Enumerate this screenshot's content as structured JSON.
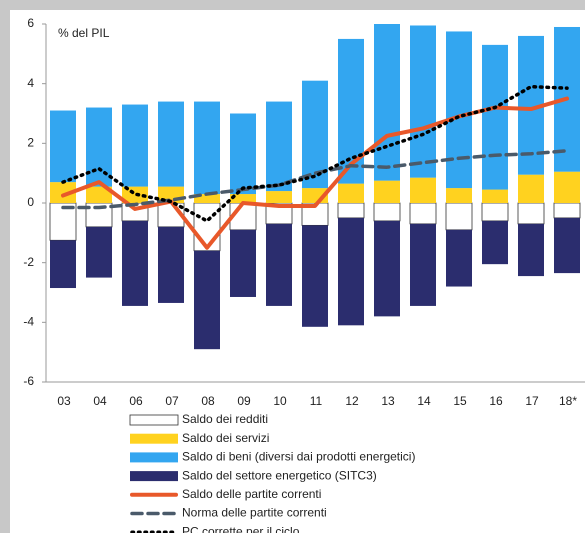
{
  "chart_data": {
    "type": "bar",
    "annotation": "% del PIL",
    "categories": [
      "03",
      "04",
      "06",
      "07",
      "08",
      "09",
      "10",
      "11",
      "12",
      "13",
      "14",
      "15",
      "16",
      "17",
      "18*"
    ],
    "ylim": [
      -6,
      6
    ],
    "yticks": [
      -6,
      -4,
      -2,
      0,
      2,
      4,
      6
    ],
    "grid": false,
    "stacked": true,
    "series": [
      {
        "name": "Saldo dei redditi",
        "type": "bar",
        "color": "#ffffff",
        "values": [
          -1.25,
          -0.8,
          -0.6,
          -0.8,
          -1.6,
          -0.9,
          -0.7,
          -0.75,
          -0.5,
          -0.6,
          -0.7,
          -0.9,
          -0.6,
          -0.7,
          -0.5
        ]
      },
      {
        "name": "Saldo dei servizi",
        "type": "bar",
        "color": "#ffd21f",
        "values": [
          0.7,
          0.55,
          0.55,
          0.55,
          0.3,
          0.3,
          0.4,
          0.5,
          0.65,
          0.75,
          0.85,
          0.5,
          0.45,
          0.95,
          1.05
        ]
      },
      {
        "name": "Saldo di beni (diversi dai prodotti energetici)",
        "type": "bar",
        "color": "#33a6f0",
        "values": [
          2.4,
          2.65,
          2.75,
          2.85,
          3.1,
          2.7,
          3.0,
          3.6,
          4.85,
          5.25,
          5.1,
          5.25,
          4.85,
          4.65,
          4.85
        ]
      },
      {
        "name": "Saldo del settore energetico (SITC3)",
        "type": "bar",
        "color": "#2b2d6e",
        "values": [
          -1.6,
          -1.7,
          -2.85,
          -2.55,
          -3.3,
          -2.25,
          -2.75,
          -3.4,
          -3.6,
          -3.2,
          -2.75,
          -1.9,
          -1.45,
          -1.75,
          -1.85
        ]
      },
      {
        "name": "Saldo delle partite correnti",
        "type": "line",
        "color": "#e8582a",
        "dash": "solid",
        "values": [
          0.25,
          0.7,
          -0.2,
          0.05,
          -1.5,
          0.0,
          -0.1,
          -0.1,
          1.3,
          2.25,
          2.5,
          2.9,
          3.2,
          3.15,
          3.5
        ]
      },
      {
        "name": "Norma delle partite correnti",
        "type": "line",
        "color": "#4a5a6a",
        "dash": "dashed",
        "values": [
          -0.15,
          -0.15,
          -0.05,
          0.1,
          0.3,
          0.45,
          0.6,
          1.0,
          1.25,
          1.2,
          1.35,
          1.5,
          1.6,
          1.65,
          1.75
        ]
      },
      {
        "name": "PC corrette per il ciclo",
        "type": "line",
        "color": "#000000",
        "dash": "dotted",
        "values": [
          0.7,
          1.15,
          0.3,
          0.05,
          -0.6,
          0.5,
          0.6,
          0.9,
          1.5,
          1.9,
          2.3,
          2.9,
          3.2,
          3.9,
          3.85
        ]
      }
    ]
  }
}
